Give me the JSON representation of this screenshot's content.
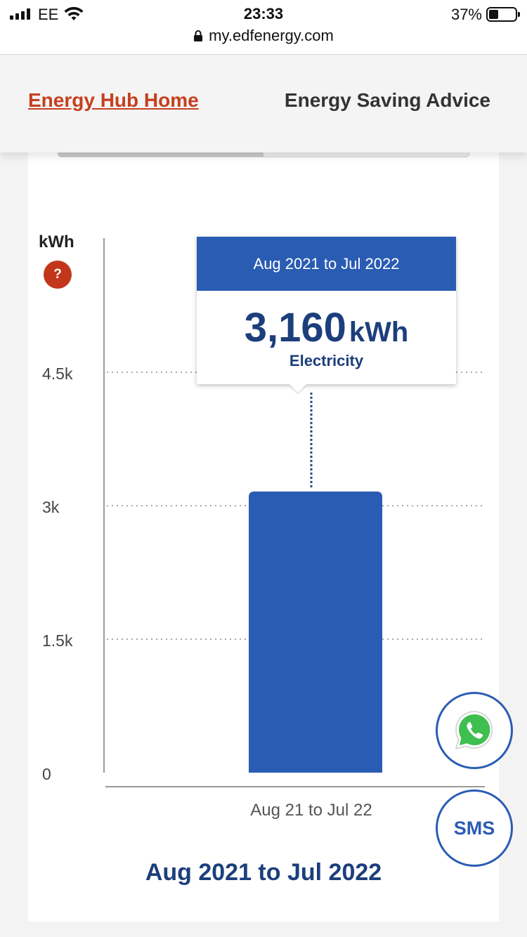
{
  "status_bar": {
    "carrier": "EE",
    "time": "23:33",
    "battery_percent_label": "37%",
    "battery_level": 0.37,
    "url": "my.edfenergy.com",
    "icons": [
      "signal-icon",
      "wifi-icon",
      "lock-icon",
      "battery-icon"
    ]
  },
  "nav": {
    "home_label": "Energy Hub Home",
    "advice_label": "Energy Saving Advice"
  },
  "colors": {
    "brand_red": "#c5401f",
    "bar_blue": "#2a5cb3",
    "navy_text": "#1c3f7c",
    "help_red": "#c2371b"
  },
  "chart_data": {
    "type": "bar",
    "ylabel": "kWh",
    "categories": [
      "Aug 21 to Jul 22"
    ],
    "values": [
      3160
    ],
    "ylim": [
      0,
      4500
    ],
    "yticks": [
      0,
      1500,
      3000,
      4500
    ],
    "ytick_labels": [
      "0",
      "1.5k",
      "3k",
      "4.5k"
    ],
    "grid": "dotted horizontal",
    "tooltip": {
      "title": "Aug 2021 to Jul 2022",
      "value": "3,160",
      "unit": "kWh",
      "label": "Electricity"
    }
  },
  "period_title": "Aug 2021 to Jul 2022",
  "help_button": {
    "label": "?"
  },
  "fabs": {
    "whatsapp_icon": "whatsapp-icon",
    "sms_label": "SMS"
  }
}
